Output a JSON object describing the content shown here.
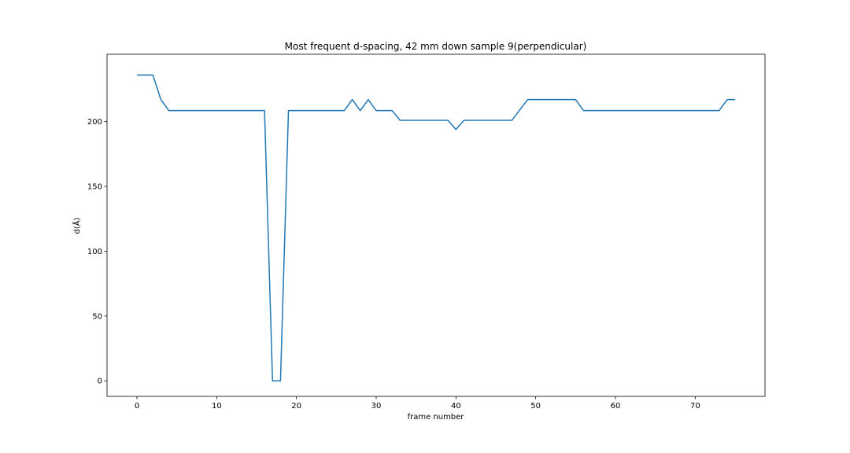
{
  "chart_data": {
    "type": "line",
    "title": "Most frequent d-spacing, 42 mm down sample 9(perpendicular)",
    "xlabel": "frame number",
    "ylabel": "d(Å)",
    "xlim": [
      -3.75,
      78.75
    ],
    "ylim": [
      -12,
      252
    ],
    "xticks": [
      0,
      10,
      20,
      30,
      40,
      50,
      60,
      70
    ],
    "yticks": [
      0,
      50,
      100,
      150,
      200
    ],
    "grid": false,
    "color": "#1f77b4",
    "series": [
      {
        "x": [
          0,
          1,
          2,
          3,
          4,
          5,
          6,
          7,
          8,
          9,
          10,
          11,
          12,
          13,
          14,
          15,
          16,
          17,
          18,
          19,
          20,
          21,
          22,
          23,
          24,
          25,
          26,
          27,
          28,
          29,
          30,
          31,
          32,
          33,
          34,
          35,
          36,
          37,
          38,
          39,
          40,
          41,
          42,
          43,
          44,
          45,
          46,
          47,
          48,
          49,
          50,
          51,
          52,
          53,
          54,
          55,
          56,
          57,
          58,
          59,
          60,
          61,
          62,
          63,
          64,
          65,
          66,
          67,
          68,
          69,
          70,
          71,
          72,
          73,
          74,
          75
        ],
        "values": [
          236,
          236,
          236,
          217,
          208.5,
          208.5,
          208.5,
          208.5,
          208.5,
          208.5,
          208.5,
          208.5,
          208.5,
          208.5,
          208.5,
          208.5,
          208.5,
          0,
          0,
          208.5,
          208.5,
          208.5,
          208.5,
          208.5,
          208.5,
          208.5,
          208.5,
          217,
          208.5,
          217,
          208.5,
          208.5,
          208.5,
          201,
          201,
          201,
          201,
          201,
          201,
          201,
          194,
          201,
          201,
          201,
          201,
          201,
          201,
          201,
          209,
          217,
          217,
          217,
          217,
          217,
          217,
          217,
          208.5,
          208.5,
          208.5,
          208.5,
          208.5,
          208.5,
          208.5,
          208.5,
          208.5,
          208.5,
          208.5,
          208.5,
          208.5,
          208.5,
          208.5,
          208.5,
          208.5,
          208.5,
          217,
          217
        ]
      }
    ]
  }
}
